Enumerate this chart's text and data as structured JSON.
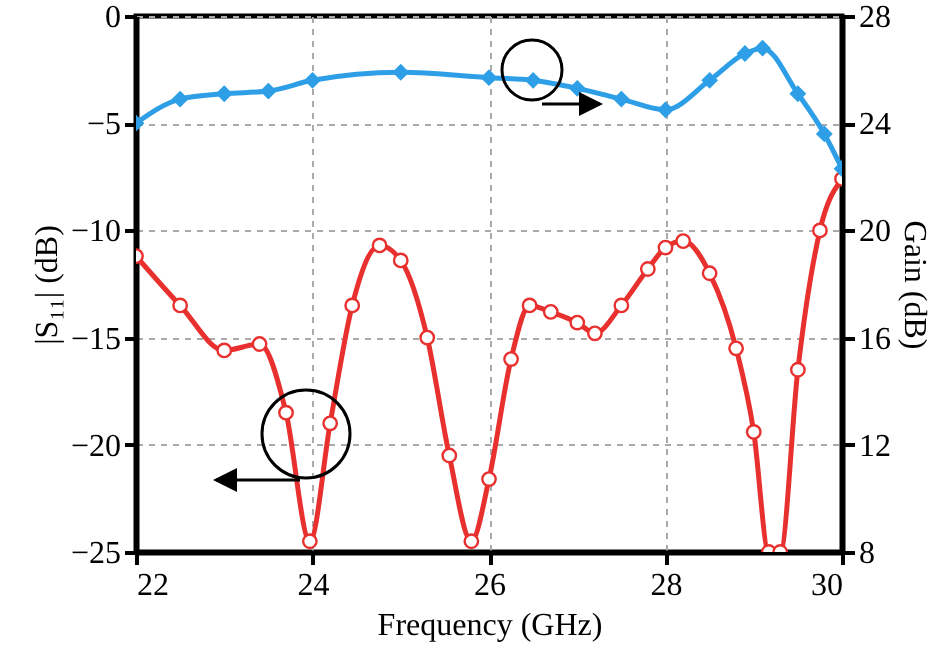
{
  "chart_data": {
    "type": "line",
    "xlabel": "Frequency (GHz)",
    "ylabel": "|S₁₁| (dB)",
    "y2label": "Gain (dB)",
    "xlim": [
      22,
      30
    ],
    "xticks": [
      22,
      24,
      26,
      28,
      30
    ],
    "ylim": [
      -25,
      0
    ],
    "yticks": [
      -25,
      -20,
      -15,
      -10,
      -5,
      0
    ],
    "y2lim": [
      8,
      28
    ],
    "y2ticks": [
      8,
      12,
      16,
      20,
      24,
      28
    ],
    "grid": true,
    "series": [
      {
        "color": "#e8302f",
        "marker": "circle",
        "x": [
          22,
          22.5,
          23,
          23.4,
          23.7,
          23.97,
          24.2,
          24.45,
          24.76,
          25,
          25.3,
          25.55,
          25.8,
          26,
          26.25,
          26.46,
          26.7,
          27,
          27.2,
          27.5,
          27.8,
          28,
          28.2,
          28.5,
          28.8,
          29,
          29.17,
          29.3,
          29.5,
          29.75,
          30
        ],
        "values": [
          -11.2,
          -13.5,
          -15.6,
          -15.3,
          -18.5,
          -24.5,
          -19,
          -13.5,
          -10.7,
          -11.4,
          -15,
          -20.5,
          -24.5,
          -21.6,
          -16,
          -13.5,
          -13.8,
          -14.3,
          -14.8,
          -13.5,
          -11.8,
          -10.8,
          -10.5,
          -12,
          -15.5,
          -19.4,
          -25,
          -25,
          -16.5,
          -10,
          -7.6
        ]
      },
      {
        "color": "#2e9fe6",
        "marker": "diamond",
        "axis": "y2",
        "x": [
          22,
          22.5,
          23,
          23.5,
          24,
          25,
          26,
          26.5,
          27,
          27.5,
          28,
          28.5,
          28.9,
          29.1,
          29.5,
          29.8,
          30
        ],
        "values": [
          24.0,
          24.9,
          25.1,
          25.2,
          25.6,
          25.9,
          25.7,
          25.6,
          25.3,
          24.9,
          24.5,
          25.6,
          26.6,
          26.8,
          25.1,
          23.6,
          22.3
        ]
      }
    ]
  }
}
